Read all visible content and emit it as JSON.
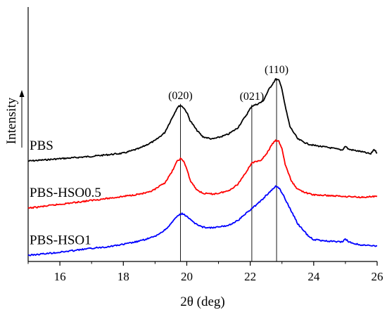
{
  "chart_data": {
    "type": "line",
    "title": "",
    "xlabel": "2θ (deg)",
    "ylabel": "Intensity",
    "xlim": [
      15,
      26
    ],
    "xticks": [
      16,
      18,
      20,
      22,
      24,
      26
    ],
    "y_ticks_shown": false,
    "grid": false,
    "peaks": [
      {
        "label": "(020)",
        "x": 19.8
      },
      {
        "label": "(021)",
        "x": 22.05
      },
      {
        "label": "(110)",
        "x": 22.83
      }
    ],
    "series": [
      {
        "name": "PBS",
        "color": "#000000",
        "points": [
          [
            15,
            0.3
          ],
          [
            15.5,
            0.307
          ],
          [
            16,
            0.315
          ],
          [
            16.5,
            0.322
          ],
          [
            17,
            0.33
          ],
          [
            17.5,
            0.34
          ],
          [
            18,
            0.35
          ],
          [
            18.5,
            0.38
          ],
          [
            19,
            0.43
          ],
          [
            19.3,
            0.48
          ],
          [
            19.5,
            0.56
          ],
          [
            19.7,
            0.64
          ],
          [
            19.8,
            0.655
          ],
          [
            19.9,
            0.64
          ],
          [
            20.0,
            0.61
          ],
          [
            20.1,
            0.56
          ],
          [
            20.3,
            0.5
          ],
          [
            20.5,
            0.455
          ],
          [
            20.8,
            0.44
          ],
          [
            21.0,
            0.45
          ],
          [
            21.3,
            0.47
          ],
          [
            21.6,
            0.51
          ],
          [
            21.9,
            0.6
          ],
          [
            22.05,
            0.65
          ],
          [
            22.2,
            0.66
          ],
          [
            22.4,
            0.68
          ],
          [
            22.6,
            0.76
          ],
          [
            22.8,
            0.82
          ],
          [
            22.9,
            0.815
          ],
          [
            23.0,
            0.76
          ],
          [
            23.1,
            0.65
          ],
          [
            23.25,
            0.52
          ],
          [
            23.5,
            0.44
          ],
          [
            23.8,
            0.41
          ],
          [
            24.0,
            0.4
          ],
          [
            24.5,
            0.385
          ],
          [
            24.9,
            0.37
          ],
          [
            25.0,
            0.395
          ],
          [
            25.1,
            0.375
          ],
          [
            25.5,
            0.36
          ],
          [
            25.8,
            0.345
          ],
          [
            25.9,
            0.375
          ],
          [
            26,
            0.35
          ]
        ]
      },
      {
        "name": "PBS-HSO0.5",
        "color": "#ff0000",
        "points": [
          [
            15,
            0.0
          ],
          [
            15.5,
            0.012
          ],
          [
            16,
            0.025
          ],
          [
            16.5,
            0.037
          ],
          [
            17,
            0.05
          ],
          [
            17.5,
            0.062
          ],
          [
            18,
            0.075
          ],
          [
            18.5,
            0.09
          ],
          [
            18.8,
            0.1
          ],
          [
            19.0,
            0.12
          ],
          [
            19.3,
            0.16
          ],
          [
            19.5,
            0.22
          ],
          [
            19.7,
            0.3
          ],
          [
            19.8,
            0.315
          ],
          [
            19.9,
            0.3
          ],
          [
            20.0,
            0.25
          ],
          [
            20.1,
            0.18
          ],
          [
            20.3,
            0.12
          ],
          [
            20.5,
            0.095
          ],
          [
            20.8,
            0.09
          ],
          [
            21.0,
            0.095
          ],
          [
            21.3,
            0.11
          ],
          [
            21.6,
            0.15
          ],
          [
            21.9,
            0.24
          ],
          [
            22.05,
            0.29
          ],
          [
            22.3,
            0.3
          ],
          [
            22.5,
            0.34
          ],
          [
            22.7,
            0.41
          ],
          [
            22.8,
            0.43
          ],
          [
            22.9,
            0.425
          ],
          [
            23.0,
            0.38
          ],
          [
            23.1,
            0.28
          ],
          [
            23.3,
            0.17
          ],
          [
            23.5,
            0.12
          ],
          [
            23.8,
            0.095
          ],
          [
            24.0,
            0.085
          ],
          [
            24.5,
            0.08
          ],
          [
            25.0,
            0.075
          ],
          [
            25.5,
            0.07
          ],
          [
            26,
            0.075
          ]
        ]
      },
      {
        "name": "PBS-HSO1",
        "color": "#0000ff",
        "points": [
          [
            15,
            -0.3
          ],
          [
            15.5,
            -0.29
          ],
          [
            16,
            -0.28
          ],
          [
            16.5,
            -0.268
          ],
          [
            17,
            -0.255
          ],
          [
            17.5,
            -0.245
          ],
          [
            18,
            -0.23
          ],
          [
            18.5,
            -0.21
          ],
          [
            19.0,
            -0.18
          ],
          [
            19.3,
            -0.14
          ],
          [
            19.5,
            -0.1
          ],
          [
            19.7,
            -0.05
          ],
          [
            19.85,
            -0.035
          ],
          [
            20.0,
            -0.05
          ],
          [
            20.2,
            -0.09
          ],
          [
            20.5,
            -0.12
          ],
          [
            20.8,
            -0.125
          ],
          [
            21.0,
            -0.12
          ],
          [
            21.3,
            -0.11
          ],
          [
            21.6,
            -0.08
          ],
          [
            22.0,
            -0.01
          ],
          [
            22.3,
            0.04
          ],
          [
            22.5,
            0.08
          ],
          [
            22.7,
            0.12
          ],
          [
            22.8,
            0.14
          ],
          [
            22.9,
            0.13
          ],
          [
            23.0,
            0.1
          ],
          [
            23.2,
            0.02
          ],
          [
            23.5,
            -0.1
          ],
          [
            23.8,
            -0.17
          ],
          [
            24.0,
            -0.2
          ],
          [
            24.5,
            -0.21
          ],
          [
            24.9,
            -0.215
          ],
          [
            25.0,
            -0.195
          ],
          [
            25.1,
            -0.215
          ],
          [
            25.5,
            -0.235
          ],
          [
            26,
            -0.24
          ]
        ]
      }
    ]
  }
}
